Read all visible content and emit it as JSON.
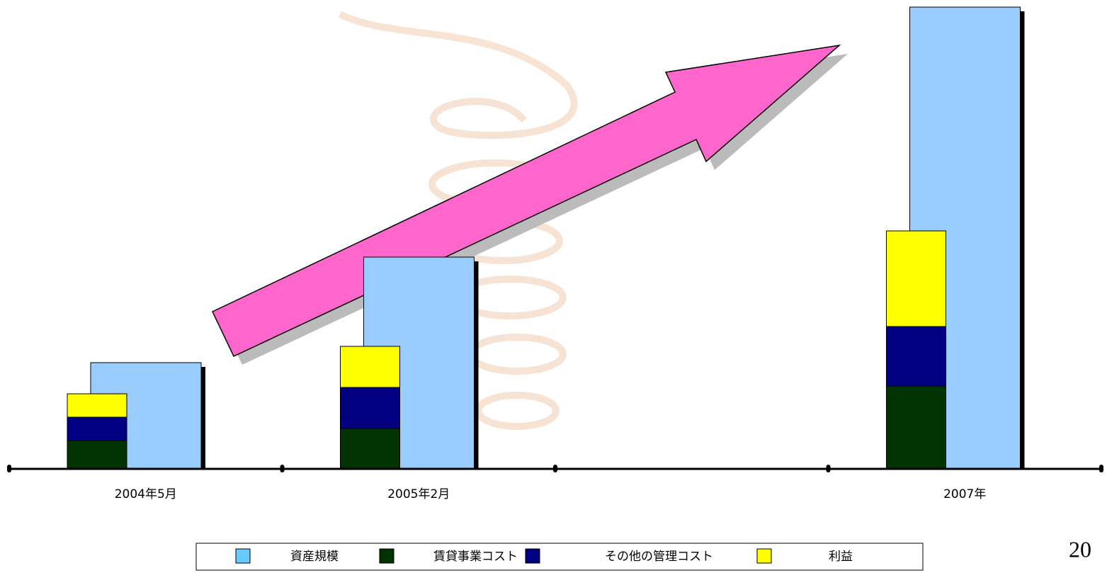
{
  "chart_data": {
    "type": "bar",
    "categories": [
      "2004年5月",
      "2005年2月",
      null,
      "2007年"
    ],
    "series": [
      {
        "name": "資産規模",
        "color": "#99ccff",
        "values": [
          150,
          299,
          null,
          652
        ]
      },
      {
        "name": "賃貸事業コスト",
        "color": "#003300",
        "values": [
          40,
          57,
          null,
          117
        ]
      },
      {
        "name": "その他の管理コスト",
        "color": "#000080",
        "values": [
          33,
          58,
          null,
          84
        ]
      },
      {
        "name": "利益",
        "color": "#ffff00",
        "values": [
          33,
          58,
          null,
          135
        ]
      }
    ],
    "ylim": [
      0,
      660
    ],
    "slide_number": "20"
  }
}
